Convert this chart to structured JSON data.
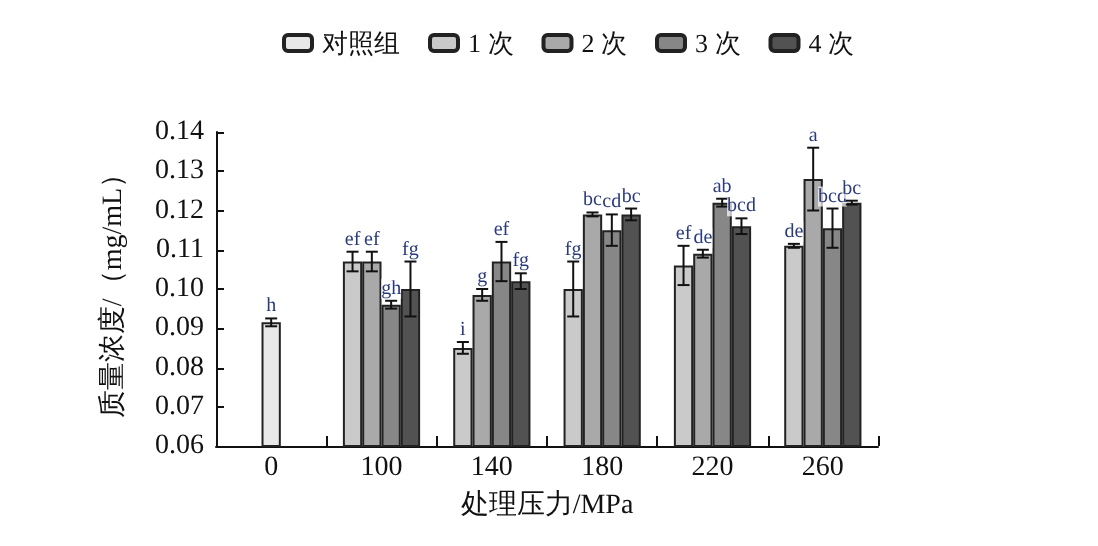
{
  "chart_data": {
    "type": "bar",
    "xlabel": "处理压力/MPa",
    "ylabel": "质量浓度/（mg/mL）",
    "categories": [
      "0",
      "100",
      "140",
      "180",
      "220",
      "260"
    ],
    "series": [
      {
        "name": "对照组",
        "color": "#e8e8e8",
        "values": [
          0.0915,
          null,
          null,
          null,
          null,
          null
        ],
        "errors": [
          0.001,
          null,
          null,
          null,
          null,
          null
        ],
        "value_labels": [
          "h",
          null,
          null,
          null,
          null,
          null
        ]
      },
      {
        "name": "1 次",
        "color": "#cacaca",
        "values": [
          null,
          0.107,
          0.085,
          0.1,
          0.106,
          0.111
        ],
        "errors": [
          null,
          0.0025,
          0.0015,
          0.007,
          0.005,
          0.0005
        ],
        "value_labels": [
          null,
          "ef",
          "i",
          "fg",
          "ef",
          "de"
        ]
      },
      {
        "name": "2 次",
        "color": "#a9a9a9",
        "values": [
          null,
          0.107,
          0.0985,
          0.119,
          0.109,
          0.128
        ],
        "errors": [
          null,
          0.0025,
          0.0015,
          0.0005,
          0.001,
          0.008
        ],
        "value_labels": [
          null,
          "ef",
          "g",
          "bc",
          "de",
          "a"
        ]
      },
      {
        "name": "3 次",
        "color": "#878787",
        "values": [
          null,
          0.096,
          0.107,
          0.115,
          0.122,
          0.1155
        ],
        "errors": [
          null,
          0.001,
          0.005,
          0.004,
          0.001,
          0.005
        ],
        "value_labels": [
          null,
          "gh",
          "ef",
          "cd",
          "ab",
          "bcd"
        ]
      },
      {
        "name": "4 次",
        "color": "#525252",
        "values": [
          null,
          0.1,
          0.102,
          0.119,
          0.116,
          0.122
        ],
        "errors": [
          null,
          0.007,
          0.002,
          0.0015,
          0.002,
          0.0005
        ],
        "value_labels": [
          null,
          "fg",
          "fg",
          "bc",
          "bcd",
          "bc"
        ]
      }
    ],
    "ylim": [
      0.06,
      0.14
    ],
    "yticks": [
      {
        "value": 0.06,
        "label": "0.06"
      },
      {
        "value": 0.07,
        "label": "0.07"
      },
      {
        "value": 0.08,
        "label": "0.08"
      },
      {
        "value": 0.09,
        "label": "0.09"
      },
      {
        "value": 0.1,
        "label": "0.10"
      },
      {
        "value": 0.11,
        "label": "0.11"
      },
      {
        "value": 0.12,
        "label": "0.12"
      },
      {
        "value": 0.13,
        "label": "0.13"
      },
      {
        "value": 0.14,
        "label": "0.14"
      }
    ],
    "grid": false,
    "legend": "top"
  }
}
